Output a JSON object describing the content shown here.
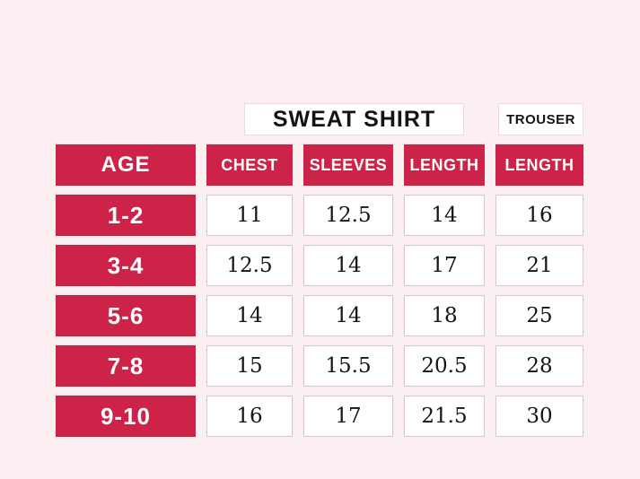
{
  "colors": {
    "background": "#FBEFF1",
    "accent": "#CE2349",
    "cell_bg": "#FFFFFF",
    "cell_border": "#DCC6CA",
    "title_border": "#F0DADE",
    "text_dark": "#141414",
    "text_light": "#FFFFFF"
  },
  "header": {
    "sweat_shirt_label": "SWEAT SHIRT",
    "trouser_label": "TROUSER"
  },
  "table": {
    "age_header": "AGE",
    "columns": [
      "CHEST",
      "SLEEVES",
      "LENGTH",
      "LENGTH"
    ],
    "rows": [
      {
        "age": "1-2",
        "values": [
          "11",
          "12.5",
          "14",
          "16"
        ]
      },
      {
        "age": "3-4",
        "values": [
          "12.5",
          "14",
          "17",
          "21"
        ]
      },
      {
        "age": "5-6",
        "values": [
          "14",
          "14",
          "18",
          "25"
        ]
      },
      {
        "age": "7-8",
        "values": [
          "15",
          "15.5",
          "20.5",
          "28"
        ]
      },
      {
        "age": "9-10",
        "values": [
          "16",
          "17",
          "21.5",
          "30"
        ]
      }
    ]
  },
  "chart_data": {
    "type": "table",
    "title": "SWEAT SHIRT",
    "secondary_title": "TROUSER",
    "column_groups": [
      {
        "label": "SWEAT SHIRT",
        "columns": [
          "CHEST",
          "SLEEVES",
          "LENGTH"
        ]
      },
      {
        "label": "TROUSER",
        "columns": [
          "LENGTH"
        ]
      }
    ],
    "columns": [
      "AGE",
      "CHEST",
      "SLEEVES",
      "LENGTH",
      "LENGTH"
    ],
    "rows": [
      [
        "1-2",
        11,
        12.5,
        14,
        16
      ],
      [
        "3-4",
        12.5,
        14,
        17,
        21
      ],
      [
        "5-6",
        14,
        14,
        18,
        25
      ],
      [
        "7-8",
        15,
        15.5,
        20.5,
        28
      ],
      [
        "9-10",
        16,
        17,
        21.5,
        30
      ]
    ]
  }
}
